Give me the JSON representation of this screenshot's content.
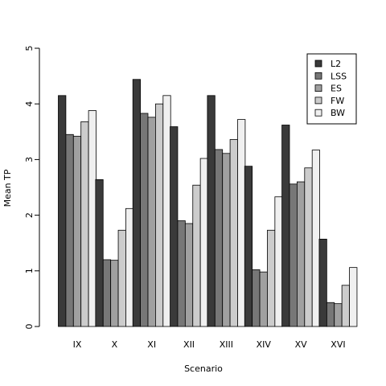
{
  "chart_data": {
    "type": "bar",
    "xlabel": "Scenario",
    "ylabel": "Mean TP",
    "ylim": [
      0,
      5
    ],
    "yticks": [
      0,
      1,
      2,
      3,
      4,
      5
    ],
    "legend_position": "top-right",
    "grid": false,
    "categories": [
      "IX",
      "X",
      "XI",
      "XII",
      "XIII",
      "XIV",
      "XV",
      "XVI"
    ],
    "series": [
      {
        "name": "L2",
        "color": "#3a3a3a",
        "values": [
          4.15,
          2.64,
          4.44,
          3.59,
          4.15,
          2.88,
          3.62,
          1.57
        ]
      },
      {
        "name": "LSS",
        "color": "#777777",
        "values": [
          3.45,
          1.2,
          3.83,
          1.9,
          3.18,
          1.02,
          2.56,
          0.43
        ]
      },
      {
        "name": "ES",
        "color": "#a0a0a0",
        "values": [
          3.42,
          1.19,
          3.76,
          1.85,
          3.11,
          0.98,
          2.6,
          0.41
        ]
      },
      {
        "name": "FW",
        "color": "#cccccc",
        "values": [
          3.68,
          1.73,
          4.0,
          2.54,
          3.36,
          1.73,
          2.85,
          0.74
        ]
      },
      {
        "name": "BW",
        "color": "#f0f0f0",
        "values": [
          3.88,
          2.12,
          4.15,
          3.02,
          3.72,
          2.33,
          3.17,
          1.06
        ]
      }
    ]
  }
}
